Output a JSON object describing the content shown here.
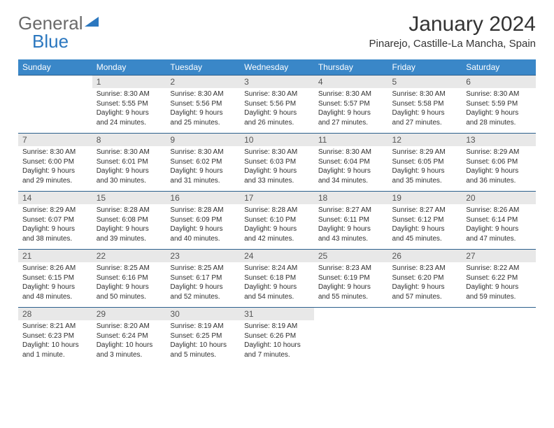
{
  "brand": {
    "part1": "General",
    "part2": "Blue"
  },
  "title": "January 2024",
  "location": "Pinarejo, Castille-La Mancha, Spain",
  "colors": {
    "header_bg": "#3a87c8",
    "header_text": "#ffffff",
    "daynum_bg": "#e8e8e8",
    "cell_rule": "#2b5f8c",
    "brand_blue": "#2b77bf",
    "brand_gray": "#6a6a6a",
    "text": "#333333",
    "data_text": "#2f2f2f"
  },
  "typography": {
    "title_fontsize": 30,
    "location_fontsize": 15,
    "dayheader_fontsize": 12,
    "cell_fontsize": 10
  },
  "weekdays": [
    "Sunday",
    "Monday",
    "Tuesday",
    "Wednesday",
    "Thursday",
    "Friday",
    "Saturday"
  ],
  "days": [
    {
      "n": "",
      "sunrise": "",
      "sunset": "",
      "daylight": ""
    },
    {
      "n": "1",
      "sunrise": "Sunrise: 8:30 AM",
      "sunset": "Sunset: 5:55 PM",
      "daylight": "Daylight: 9 hours and 24 minutes."
    },
    {
      "n": "2",
      "sunrise": "Sunrise: 8:30 AM",
      "sunset": "Sunset: 5:56 PM",
      "daylight": "Daylight: 9 hours and 25 minutes."
    },
    {
      "n": "3",
      "sunrise": "Sunrise: 8:30 AM",
      "sunset": "Sunset: 5:56 PM",
      "daylight": "Daylight: 9 hours and 26 minutes."
    },
    {
      "n": "4",
      "sunrise": "Sunrise: 8:30 AM",
      "sunset": "Sunset: 5:57 PM",
      "daylight": "Daylight: 9 hours and 27 minutes."
    },
    {
      "n": "5",
      "sunrise": "Sunrise: 8:30 AM",
      "sunset": "Sunset: 5:58 PM",
      "daylight": "Daylight: 9 hours and 27 minutes."
    },
    {
      "n": "6",
      "sunrise": "Sunrise: 8:30 AM",
      "sunset": "Sunset: 5:59 PM",
      "daylight": "Daylight: 9 hours and 28 minutes."
    },
    {
      "n": "7",
      "sunrise": "Sunrise: 8:30 AM",
      "sunset": "Sunset: 6:00 PM",
      "daylight": "Daylight: 9 hours and 29 minutes."
    },
    {
      "n": "8",
      "sunrise": "Sunrise: 8:30 AM",
      "sunset": "Sunset: 6:01 PM",
      "daylight": "Daylight: 9 hours and 30 minutes."
    },
    {
      "n": "9",
      "sunrise": "Sunrise: 8:30 AM",
      "sunset": "Sunset: 6:02 PM",
      "daylight": "Daylight: 9 hours and 31 minutes."
    },
    {
      "n": "10",
      "sunrise": "Sunrise: 8:30 AM",
      "sunset": "Sunset: 6:03 PM",
      "daylight": "Daylight: 9 hours and 33 minutes."
    },
    {
      "n": "11",
      "sunrise": "Sunrise: 8:30 AM",
      "sunset": "Sunset: 6:04 PM",
      "daylight": "Daylight: 9 hours and 34 minutes."
    },
    {
      "n": "12",
      "sunrise": "Sunrise: 8:29 AM",
      "sunset": "Sunset: 6:05 PM",
      "daylight": "Daylight: 9 hours and 35 minutes."
    },
    {
      "n": "13",
      "sunrise": "Sunrise: 8:29 AM",
      "sunset": "Sunset: 6:06 PM",
      "daylight": "Daylight: 9 hours and 36 minutes."
    },
    {
      "n": "14",
      "sunrise": "Sunrise: 8:29 AM",
      "sunset": "Sunset: 6:07 PM",
      "daylight": "Daylight: 9 hours and 38 minutes."
    },
    {
      "n": "15",
      "sunrise": "Sunrise: 8:28 AM",
      "sunset": "Sunset: 6:08 PM",
      "daylight": "Daylight: 9 hours and 39 minutes."
    },
    {
      "n": "16",
      "sunrise": "Sunrise: 8:28 AM",
      "sunset": "Sunset: 6:09 PM",
      "daylight": "Daylight: 9 hours and 40 minutes."
    },
    {
      "n": "17",
      "sunrise": "Sunrise: 8:28 AM",
      "sunset": "Sunset: 6:10 PM",
      "daylight": "Daylight: 9 hours and 42 minutes."
    },
    {
      "n": "18",
      "sunrise": "Sunrise: 8:27 AM",
      "sunset": "Sunset: 6:11 PM",
      "daylight": "Daylight: 9 hours and 43 minutes."
    },
    {
      "n": "19",
      "sunrise": "Sunrise: 8:27 AM",
      "sunset": "Sunset: 6:12 PM",
      "daylight": "Daylight: 9 hours and 45 minutes."
    },
    {
      "n": "20",
      "sunrise": "Sunrise: 8:26 AM",
      "sunset": "Sunset: 6:14 PM",
      "daylight": "Daylight: 9 hours and 47 minutes."
    },
    {
      "n": "21",
      "sunrise": "Sunrise: 8:26 AM",
      "sunset": "Sunset: 6:15 PM",
      "daylight": "Daylight: 9 hours and 48 minutes."
    },
    {
      "n": "22",
      "sunrise": "Sunrise: 8:25 AM",
      "sunset": "Sunset: 6:16 PM",
      "daylight": "Daylight: 9 hours and 50 minutes."
    },
    {
      "n": "23",
      "sunrise": "Sunrise: 8:25 AM",
      "sunset": "Sunset: 6:17 PM",
      "daylight": "Daylight: 9 hours and 52 minutes."
    },
    {
      "n": "24",
      "sunrise": "Sunrise: 8:24 AM",
      "sunset": "Sunset: 6:18 PM",
      "daylight": "Daylight: 9 hours and 54 minutes."
    },
    {
      "n": "25",
      "sunrise": "Sunrise: 8:23 AM",
      "sunset": "Sunset: 6:19 PM",
      "daylight": "Daylight: 9 hours and 55 minutes."
    },
    {
      "n": "26",
      "sunrise": "Sunrise: 8:23 AM",
      "sunset": "Sunset: 6:20 PM",
      "daylight": "Daylight: 9 hours and 57 minutes."
    },
    {
      "n": "27",
      "sunrise": "Sunrise: 8:22 AM",
      "sunset": "Sunset: 6:22 PM",
      "daylight": "Daylight: 9 hours and 59 minutes."
    },
    {
      "n": "28",
      "sunrise": "Sunrise: 8:21 AM",
      "sunset": "Sunset: 6:23 PM",
      "daylight": "Daylight: 10 hours and 1 minute."
    },
    {
      "n": "29",
      "sunrise": "Sunrise: 8:20 AM",
      "sunset": "Sunset: 6:24 PM",
      "daylight": "Daylight: 10 hours and 3 minutes."
    },
    {
      "n": "30",
      "sunrise": "Sunrise: 8:19 AM",
      "sunset": "Sunset: 6:25 PM",
      "daylight": "Daylight: 10 hours and 5 minutes."
    },
    {
      "n": "31",
      "sunrise": "Sunrise: 8:19 AM",
      "sunset": "Sunset: 6:26 PM",
      "daylight": "Daylight: 10 hours and 7 minutes."
    },
    {
      "n": "",
      "sunrise": "",
      "sunset": "",
      "daylight": ""
    },
    {
      "n": "",
      "sunrise": "",
      "sunset": "",
      "daylight": ""
    },
    {
      "n": "",
      "sunrise": "",
      "sunset": "",
      "daylight": ""
    }
  ]
}
